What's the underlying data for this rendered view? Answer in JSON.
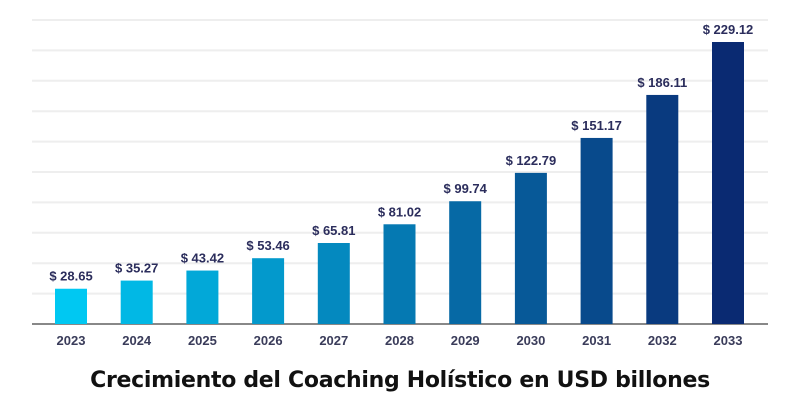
{
  "chart_data": {
    "type": "bar",
    "title": "Crecimiento del Coaching Holístico en USD billones",
    "xlabel": "",
    "ylabel": "",
    "categories": [
      "2023",
      "2024",
      "2025",
      "2026",
      "2027",
      "2028",
      "2029",
      "2030",
      "2031",
      "2032",
      "2033"
    ],
    "values": [
      28.65,
      35.27,
      43.42,
      53.46,
      65.81,
      81.02,
      99.74,
      122.79,
      151.17,
      186.11,
      229.12
    ],
    "data_labels": [
      "$ 28.65",
      "$ 35.27",
      "$ 43.42",
      "$ 53.46",
      "$ 65.81",
      "$ 81.02",
      "$ 99.74",
      "$ 122.79",
      "$ 151.17",
      "$ 186.11",
      "$ 229.12"
    ],
    "ylim": [
      0,
      250
    ],
    "grid": true,
    "legend": "none",
    "colors": {
      "start": "#00c8f2",
      "end": "#0a2a72",
      "label": "#2b2d5c",
      "grid": "#eeeeee",
      "axis": "#888888"
    }
  }
}
